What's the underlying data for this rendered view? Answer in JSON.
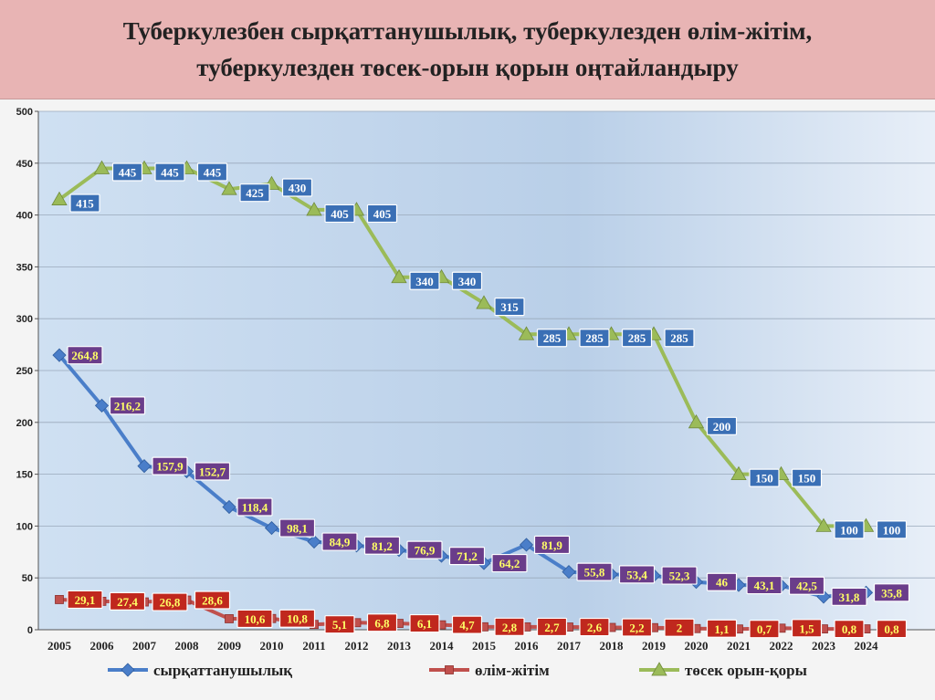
{
  "title_line1": "Туберкулезбен сырқаттанушылық, туберкулезден өлім-жітім,",
  "title_line2": "туберкулезден төсек-орын қорын оңтайландыру",
  "chart_data": {
    "type": "line",
    "x": [
      "2005",
      "2006",
      "2007",
      "2008",
      "2009",
      "2010",
      "2011",
      "2012",
      "2013",
      "2014",
      "2015",
      "2016",
      "2017",
      "2018",
      "2019",
      "2020",
      "2021",
      "2022",
      "2023",
      "2024"
    ],
    "ylim": [
      0,
      500
    ],
    "yticks": [
      "0",
      "50",
      "100",
      "150",
      "200",
      "250",
      "300",
      "350",
      "400",
      "450",
      "500"
    ],
    "legend_position": "bottom",
    "series": [
      {
        "name": "сырқаттанушылық",
        "color": "#4a7ec9",
        "marker": "diamond",
        "values": [
          264.8,
          216.2,
          157.9,
          152.7,
          118.4,
          98.1,
          84.9,
          81.2,
          76.9,
          71.2,
          64.2,
          81.9,
          55.8,
          53.4,
          52.3,
          46,
          43.1,
          42.5,
          31.8,
          35.8
        ],
        "labels": [
          "264,8",
          "216,2",
          "157,9",
          "152,7",
          "118,4",
          "98,1",
          "84,9",
          "81,2",
          "76,9",
          "71,2",
          "64,2",
          "81,9",
          "55,8",
          "53,4",
          "52,3",
          "46",
          "43,1",
          "42,5",
          "31,8",
          "35,8"
        ],
        "label_bg": "#6a3d8a",
        "label_fg": "#ffff66"
      },
      {
        "name": "өлім-жітім",
        "color": "#c0504d",
        "marker": "square",
        "values": [
          29.1,
          27.4,
          26.8,
          28.6,
          10.6,
          10.8,
          5.1,
          6.8,
          6.1,
          4.7,
          2.8,
          2.7,
          2.6,
          2.2,
          2,
          1.1,
          0.7,
          1.5,
          0.8,
          0.8
        ],
        "labels": [
          "29,1",
          "27,4",
          "26,8",
          "28,6",
          "10,6",
          "10,8",
          "5,1",
          "6,8",
          "6,1",
          "4,7",
          "2,8",
          "2,7",
          "2,6",
          "2,2",
          "2",
          "1,1",
          "0,7",
          "1,5",
          "0,8",
          "0,8"
        ],
        "label_bg": "#c0281e",
        "label_fg": "#ffff66"
      },
      {
        "name": "төсек орын-қоры",
        "color": "#9bbb59",
        "marker": "triangle",
        "values": [
          415,
          445,
          445,
          445,
          425,
          430,
          405,
          405,
          340,
          340,
          315,
          285,
          285,
          285,
          285,
          200,
          150,
          150,
          100,
          100
        ],
        "labels": [
          "415",
          "445",
          "445",
          "445",
          "425",
          "430",
          "405",
          "405",
          "340",
          "340",
          "315",
          "285",
          "285",
          "285",
          "285",
          "200",
          "150",
          "150",
          "100",
          "100"
        ],
        "label_bg": "#3a6fb5",
        "label_fg": "#ffffff"
      }
    ]
  }
}
